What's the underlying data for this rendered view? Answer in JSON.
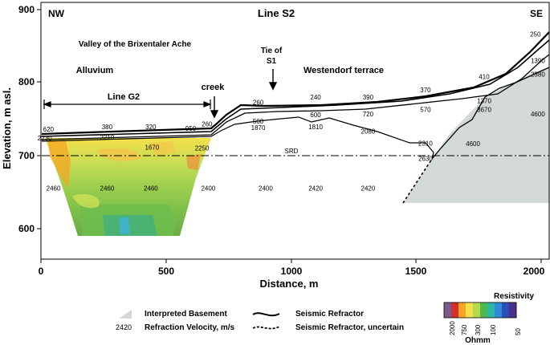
{
  "title": "Line S2",
  "corner_left": "NW",
  "corner_right": "SE",
  "ylabel": "Elevation, m asl.",
  "xlabel": "Distance, m",
  "x_ticks": [
    "0",
    "500",
    "1000",
    "1500",
    "2000"
  ],
  "y_ticks": [
    "900",
    "800",
    "700",
    "600"
  ],
  "labels": {
    "valley": "Valley of the Brixentaler Ache",
    "alluvium": "Alluvium",
    "line_g2": "Line G2",
    "creek": "creek",
    "tie_s1_line1": "Tie of",
    "tie_s1_line2": "S1",
    "westendorf": "Westendorf terrace",
    "srd": "SRD"
  },
  "velocity_labels": [
    {
      "text": "620",
      "x": 30,
      "elev": 733
    },
    {
      "text": "2230",
      "x": 15,
      "elev": 721
    },
    {
      "text": "380",
      "x": 265,
      "elev": 736
    },
    {
      "text": "2210",
      "x": 265,
      "elev": 722
    },
    {
      "text": "320",
      "x": 440,
      "elev": 736
    },
    {
      "text": "1670",
      "x": 445,
      "elev": 708
    },
    {
      "text": "950",
      "x": 600,
      "elev": 734
    },
    {
      "text": "260",
      "x": 665,
      "elev": 740
    },
    {
      "text": "2250",
      "x": 645,
      "elev": 707
    },
    {
      "text": "260",
      "x": 870,
      "elev": 770
    },
    {
      "text": "500",
      "x": 870,
      "elev": 744
    },
    {
      "text": "1870",
      "x": 870,
      "elev": 735
    },
    {
      "text": "240",
      "x": 1100,
      "elev": 777
    },
    {
      "text": "600",
      "x": 1100,
      "elev": 753
    },
    {
      "text": "1810",
      "x": 1100,
      "elev": 736
    },
    {
      "text": "390",
      "x": 1310,
      "elev": 777
    },
    {
      "text": "720",
      "x": 1310,
      "elev": 754
    },
    {
      "text": "2080",
      "x": 1310,
      "elev": 730
    },
    {
      "text": "370",
      "x": 1540,
      "elev": 787
    },
    {
      "text": "570",
      "x": 1540,
      "elev": 760
    },
    {
      "text": "2310",
      "x": 1540,
      "elev": 714
    },
    {
      "text": "2630",
      "x": 1540,
      "elev": 693
    },
    {
      "text": "410",
      "x": 1775,
      "elev": 805
    },
    {
      "text": "1370",
      "x": 1775,
      "elev": 772
    },
    {
      "text": "3670",
      "x": 1775,
      "elev": 760
    },
    {
      "text": "4600",
      "x": 1730,
      "elev": 713
    },
    {
      "text": "250",
      "x": 1980,
      "elev": 863
    },
    {
      "text": "1390",
      "x": 1990,
      "elev": 827
    },
    {
      "text": "2380",
      "x": 1990,
      "elev": 808
    },
    {
      "text": "4600",
      "x": 1990,
      "elev": 754
    },
    {
      "text": "2460",
      "x": 50,
      "elev": 652
    },
    {
      "text": "2460",
      "x": 265,
      "elev": 652
    },
    {
      "text": "2460",
      "x": 440,
      "elev": 652
    },
    {
      "text": "2400",
      "x": 670,
      "elev": 652
    },
    {
      "text": "2400",
      "x": 900,
      "elev": 652
    },
    {
      "text": "2420",
      "x": 1100,
      "elev": 652
    },
    {
      "text": "2420",
      "x": 1310,
      "elev": 652
    }
  ],
  "legend": {
    "basement_label": "Interpreted Basement",
    "velocity_sample": "2420",
    "velocity_label": "Refraction Velocity, m/s",
    "refractor_label": "Seismic Refractor",
    "refractor_uncertain_label": "Seismic Refractor, uncertain"
  },
  "resistivity_scale": {
    "title": "Resistivity",
    "unit": "Ohmm",
    "ticks": [
      "2000",
      "750",
      "300",
      "100",
      "50"
    ],
    "colors": [
      "#7a5c8c",
      "#d32f2f",
      "#f6a623",
      "#f3e04a",
      "#b6d84a",
      "#4db84d",
      "#2bb7a6",
      "#2f8ad6",
      "#2f4fb8",
      "#4b2f8c"
    ]
  },
  "colors": {
    "basement": "#d3d8d8",
    "line": "#000000"
  }
}
